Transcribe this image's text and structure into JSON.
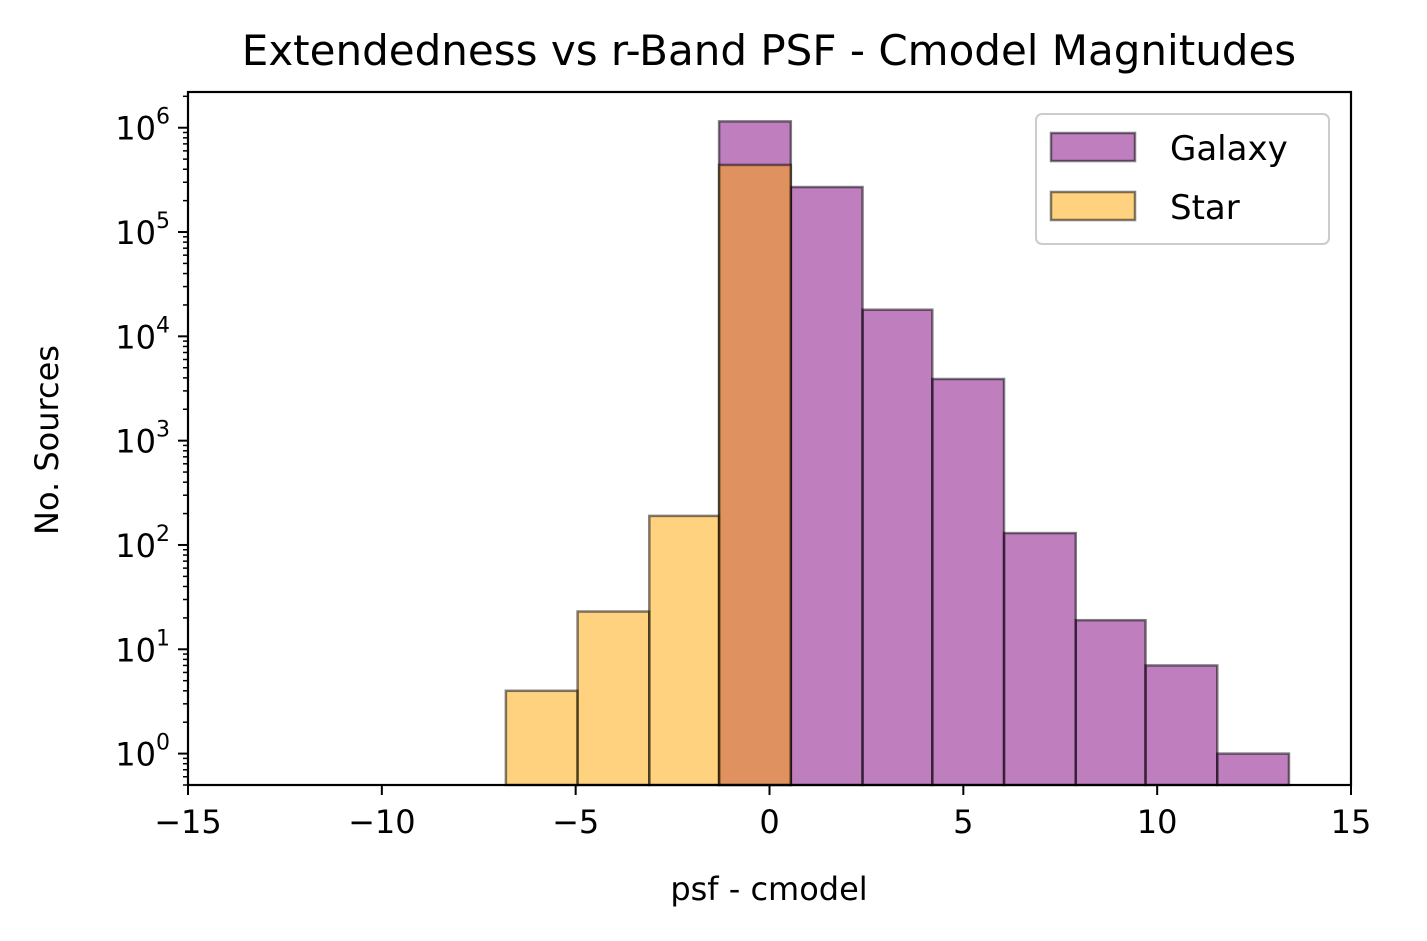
{
  "chart_data": {
    "type": "bar",
    "title": "Extendedness vs r-Band PSF - Cmodel Magnitudes",
    "xlabel": "psf - cmodel",
    "ylabel": "No. Sources",
    "xlim": [
      -15,
      15
    ],
    "ylim": [
      0.5,
      2200000
    ],
    "yscale": "log",
    "xticks": [
      -15,
      -10,
      -5,
      0,
      5,
      10,
      15
    ],
    "xtick_labels": [
      "−15",
      "−10",
      "−5",
      "0",
      "5",
      "10",
      "15"
    ],
    "yticks": [
      1,
      10,
      100,
      1000,
      10000,
      100000,
      1000000
    ],
    "ytick_base": "10",
    "ytick_exponents": [
      "0",
      "1",
      "2",
      "3",
      "4",
      "5",
      "6"
    ],
    "grid": false,
    "legend_position": "top-right",
    "series": [
      {
        "name": "Galaxy",
        "color": "#800080",
        "opacity": 0.5,
        "bins": [
          {
            "x0": -1.3,
            "x1": 0.55,
            "value": 1150000
          },
          {
            "x0": 0.55,
            "x1": 2.4,
            "value": 270000
          },
          {
            "x0": 2.4,
            "x1": 4.2,
            "value": 18000
          },
          {
            "x0": 4.2,
            "x1": 6.05,
            "value": 3900
          },
          {
            "x0": 6.05,
            "x1": 7.9,
            "value": 130
          },
          {
            "x0": 7.9,
            "x1": 9.7,
            "value": 19
          },
          {
            "x0": 9.7,
            "x1": 11.55,
            "value": 7
          },
          {
            "x0": 11.55,
            "x1": 13.4,
            "value": 1
          }
        ]
      },
      {
        "name": "Star",
        "color": "#FFA500",
        "opacity": 0.5,
        "bins": [
          {
            "x0": -6.8,
            "x1": -4.95,
            "value": 4
          },
          {
            "x0": -4.95,
            "x1": -3.1,
            "value": 23
          },
          {
            "x0": -3.1,
            "x1": -1.3,
            "value": 190
          },
          {
            "x0": -1.3,
            "x1": 0.55,
            "value": 440000
          }
        ]
      }
    ]
  }
}
